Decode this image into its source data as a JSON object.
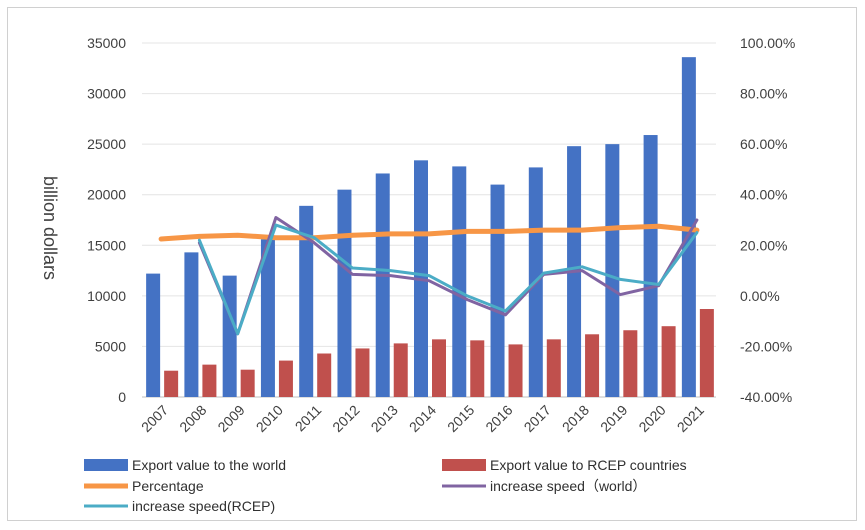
{
  "chart_data": {
    "type": "bar",
    "categories": [
      "2007",
      "2008",
      "2009",
      "2010",
      "2011",
      "2012",
      "2013",
      "2014",
      "2015",
      "2016",
      "2017",
      "2018",
      "2019",
      "2020",
      "2021"
    ],
    "ylabel": "billion dollars",
    "ylim": [
      0,
      35000
    ],
    "y_ticks": [
      "35000",
      "30000",
      "25000",
      "20000",
      "15000",
      "10000",
      "5000",
      "0"
    ],
    "y2lim": [
      -40,
      100
    ],
    "y2_ticks": [
      "100.00%",
      "80.00%",
      "60.00%",
      "40.00%",
      "20.00%",
      "0.00%",
      "-20.00%",
      "-40.00%"
    ],
    "grid": true,
    "legend_position": "bottom",
    "series": [
      {
        "name": "Export value to the world",
        "type": "bar",
        "axis": "left",
        "color": "#4472c4",
        "values": [
          12200,
          14300,
          12000,
          15600,
          18900,
          20500,
          22100,
          23400,
          22800,
          21000,
          22700,
          24800,
          25000,
          25900,
          33600
        ]
      },
      {
        "name": "Export value to RCEP countries",
        "type": "bar",
        "axis": "left",
        "color": "#c0504d",
        "values": [
          2600,
          3200,
          2700,
          3600,
          4300,
          4800,
          5300,
          5700,
          5600,
          5200,
          5700,
          6200,
          6600,
          7000,
          8700
        ]
      },
      {
        "name": "Percentage",
        "type": "line",
        "axis": "right",
        "color": "#f79646",
        "values": [
          22.5,
          23.5,
          24,
          23,
          23,
          24,
          24.5,
          24.5,
          25.5,
          25.5,
          26,
          26,
          27,
          27.5,
          26
        ]
      },
      {
        "name": "increase speed（world）",
        "type": "line",
        "axis": "right",
        "color": "#8064a2",
        "values": [
          null,
          21,
          -15,
          31,
          21,
          8.5,
          8,
          6,
          -1.5,
          -7.5,
          8.5,
          10,
          0.5,
          4,
          30
        ]
      },
      {
        "name": "increase speed(RCEP)",
        "type": "line",
        "axis": "right",
        "color": "#4bacc6",
        "values": [
          null,
          22,
          -15,
          28,
          23,
          11,
          10,
          8,
          0,
          -6,
          9,
          11.5,
          6.5,
          4.5,
          25
        ]
      }
    ]
  }
}
